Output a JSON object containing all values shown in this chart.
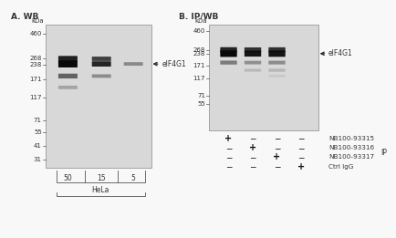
{
  "bg_color": "#f8f8f8",
  "blot_bg": "#dcdcdc",
  "panel_A_title": "A. WB",
  "panel_B_title": "B. IP/WB",
  "kda_label": "kDa",
  "mw_markers_A": [
    460,
    268,
    238,
    171,
    117,
    71,
    55,
    41,
    31
  ],
  "mw_markers_B": [
    460,
    268,
    238,
    171,
    117,
    71,
    55
  ],
  "mw_min": 26,
  "mw_max": 560,
  "panel_A_lanes": [
    "50",
    "15",
    "5"
  ],
  "panel_A_cell_line": "HeLa",
  "panel_B_rows": [
    [
      "+",
      "-",
      "-",
      "-"
    ],
    [
      "-",
      "+",
      "-",
      "-"
    ],
    [
      "-",
      "-",
      "+",
      "-"
    ],
    [
      "-",
      "-",
      "-",
      "+"
    ]
  ],
  "panel_B_row_labels": [
    "NB100-93315",
    "NB100-93316",
    "NB100-93317",
    "Ctrl IgG"
  ],
  "panel_B_IP_label": "IP",
  "eIF4G1_label": "← eIF4G1",
  "text_color": "#333333"
}
